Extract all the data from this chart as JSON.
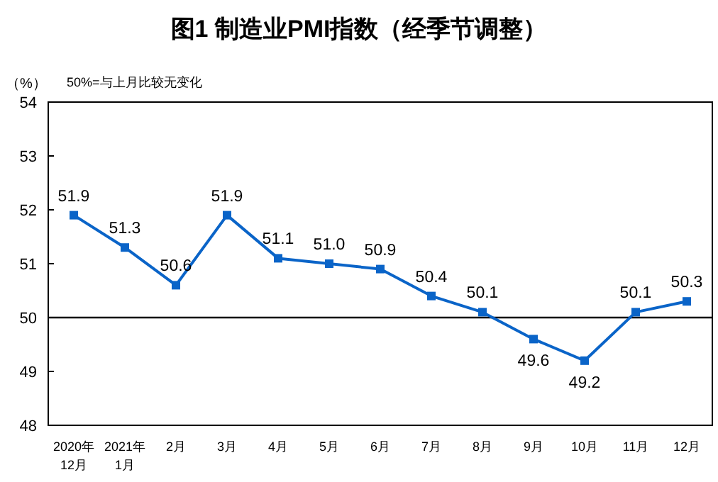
{
  "chart_data": {
    "type": "line",
    "title": "图1 制造业PMI指数（经季节调整）",
    "ylabel": "（%）",
    "annotations": [
      "50%=与上月比较无变化"
    ],
    "categories": [
      "2020年\n12月",
      "2021年\n1月",
      "2月",
      "3月",
      "4月",
      "5月",
      "6月",
      "7月",
      "8月",
      "9月",
      "10月",
      "11月",
      "12月"
    ],
    "series": [
      {
        "color": "#0a64c8",
        "values": [
          51.9,
          51.3,
          50.6,
          51.9,
          51.1,
          51.0,
          50.9,
          50.4,
          50.1,
          49.6,
          49.2,
          50.1,
          50.3
        ],
        "value_labels": [
          "51.9",
          "51.3",
          "50.6",
          "51.9",
          "51.1",
          "51.0",
          "50.9",
          "50.4",
          "50.1",
          "49.6",
          "49.2",
          "50.1",
          "50.3"
        ]
      }
    ],
    "ylim": [
      48,
      54
    ],
    "yticks": [
      48,
      49,
      50,
      51,
      52,
      53,
      54
    ],
    "ref_lines": [
      {
        "axis": "y",
        "value": 50,
        "color": "#000000"
      }
    ],
    "marker": "square",
    "line_style": "solid",
    "grid": false
  }
}
